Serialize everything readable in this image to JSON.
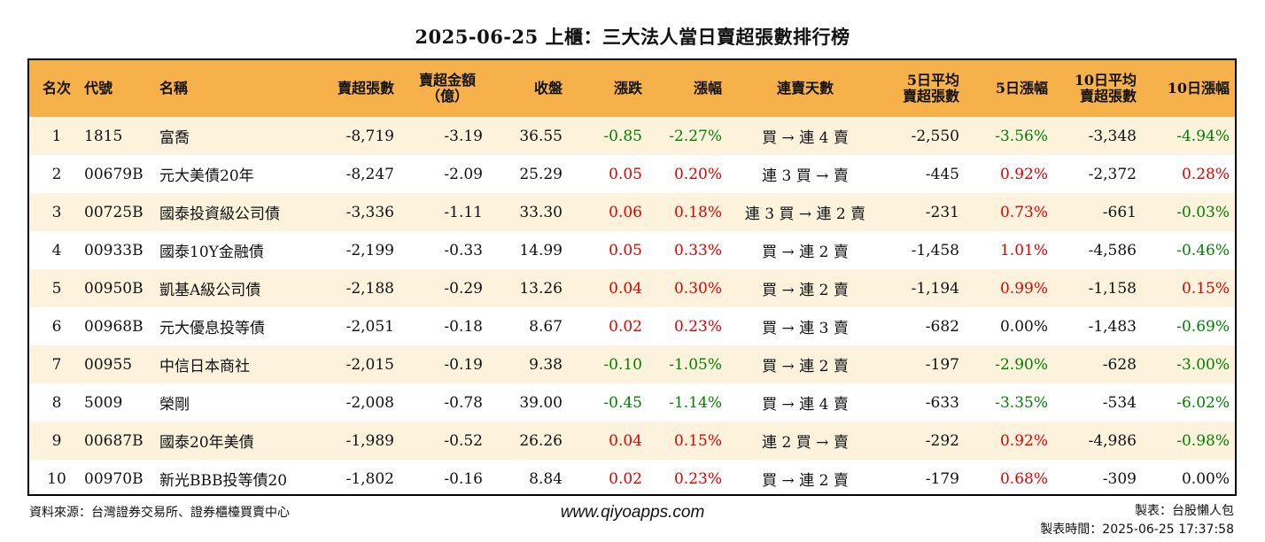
{
  "title": "2025-06-25 上櫃：三大法人當日賣超張數排行榜",
  "colors": {
    "header_bg": "#f7b14a",
    "row_odd_bg": "#fdf3dd",
    "up": "#e00000",
    "down": "#008000"
  },
  "headers": {
    "rank": "名次",
    "code": "代號",
    "name": "名稱",
    "sell_lots": "賣超張數",
    "sell_amt_1": "賣超金額",
    "sell_amt_2": "（億）",
    "close": "收盤",
    "change": "漲跌",
    "pct": "漲幅",
    "streak": "連賣天數",
    "avg5_1": "5日平均",
    "avg5_2": "賣超張數",
    "pct5": "5日漲幅",
    "avg10_1": "10日平均",
    "avg10_2": "賣超張數",
    "pct10": "10日漲幅"
  },
  "rows": [
    {
      "rank": "1",
      "code": "1815",
      "name": "富喬",
      "sell_lots": "-8,719",
      "sell_amt": "-3.19",
      "close": "36.55",
      "change": "-0.85",
      "pct": "-2.27%",
      "streak": "買 → 連 4 賣",
      "avg5": "-2,550",
      "pct5": "-3.56%",
      "avg10": "-3,348",
      "pct10": "-4.94%"
    },
    {
      "rank": "2",
      "code": "00679B",
      "name": "元大美債20年",
      "sell_lots": "-8,247",
      "sell_amt": "-2.09",
      "close": "25.29",
      "change": "0.05",
      "pct": "0.20%",
      "streak": "連 3 買 → 賣",
      "avg5": "-445",
      "pct5": "0.92%",
      "avg10": "-2,372",
      "pct10": "0.28%"
    },
    {
      "rank": "3",
      "code": "00725B",
      "name": "國泰投資級公司債",
      "sell_lots": "-3,336",
      "sell_amt": "-1.11",
      "close": "33.30",
      "change": "0.06",
      "pct": "0.18%",
      "streak": "連 3 買 → 連 2 賣",
      "avg5": "-231",
      "pct5": "0.73%",
      "avg10": "-661",
      "pct10": "-0.03%"
    },
    {
      "rank": "4",
      "code": "00933B",
      "name": "國泰10Y金融債",
      "sell_lots": "-2,199",
      "sell_amt": "-0.33",
      "close": "14.99",
      "change": "0.05",
      "pct": "0.33%",
      "streak": "買 → 連 2 賣",
      "avg5": "-1,458",
      "pct5": "1.01%",
      "avg10": "-4,586",
      "pct10": "-0.46%"
    },
    {
      "rank": "5",
      "code": "00950B",
      "name": "凱基A級公司債",
      "sell_lots": "-2,188",
      "sell_amt": "-0.29",
      "close": "13.26",
      "change": "0.04",
      "pct": "0.30%",
      "streak": "買 → 連 2 賣",
      "avg5": "-1,194",
      "pct5": "0.99%",
      "avg10": "-1,158",
      "pct10": "0.15%"
    },
    {
      "rank": "6",
      "code": "00968B",
      "name": "元大優息投等債",
      "sell_lots": "-2,051",
      "sell_amt": "-0.18",
      "close": "8.67",
      "change": "0.02",
      "pct": "0.23%",
      "streak": "買 → 連 3 賣",
      "avg5": "-682",
      "pct5": "0.00%",
      "avg10": "-1,483",
      "pct10": "-0.69%"
    },
    {
      "rank": "7",
      "code": "00955",
      "name": "中信日本商社",
      "sell_lots": "-2,015",
      "sell_amt": "-0.19",
      "close": "9.38",
      "change": "-0.10",
      "pct": "-1.05%",
      "streak": "買 → 連 2 賣",
      "avg5": "-197",
      "pct5": "-2.90%",
      "avg10": "-628",
      "pct10": "-3.00%"
    },
    {
      "rank": "8",
      "code": "5009",
      "name": "榮剛",
      "sell_lots": "-2,008",
      "sell_amt": "-0.78",
      "close": "39.00",
      "change": "-0.45",
      "pct": "-1.14%",
      "streak": "買 → 連 4 賣",
      "avg5": "-633",
      "pct5": "-3.35%",
      "avg10": "-534",
      "pct10": "-6.02%"
    },
    {
      "rank": "9",
      "code": "00687B",
      "name": "國泰20年美債",
      "sell_lots": "-1,989",
      "sell_amt": "-0.52",
      "close": "26.26",
      "change": "0.04",
      "pct": "0.15%",
      "streak": "連 2 買 → 賣",
      "avg5": "-292",
      "pct5": "0.92%",
      "avg10": "-4,986",
      "pct10": "-0.98%"
    },
    {
      "rank": "10",
      "code": "00970B",
      "name": "新光BBB投等債20",
      "sell_lots": "-1,802",
      "sell_amt": "-0.16",
      "close": "8.84",
      "change": "0.02",
      "pct": "0.23%",
      "streak": "買 → 連 2 賣",
      "avg5": "-179",
      "pct5": "0.68%",
      "avg10": "-309",
      "pct10": "0.00%"
    }
  ],
  "footer": {
    "source": "資料來源：台灣證券交易所、證券櫃檯買賣中心",
    "site": "www.qiyoapps.com",
    "maker": "製表：台股懶人包",
    "made_time": "製表時間：2025-06-25 17:37:58"
  }
}
